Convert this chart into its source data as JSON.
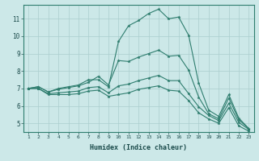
{
  "xlabel": "Humidex (Indice chaleur)",
  "background_color": "#cce8e8",
  "grid_color": "#aacece",
  "line_color": "#2e7d6e",
  "x_values": [
    1,
    2,
    3,
    4,
    5,
    6,
    7,
    8,
    9,
    10,
    11,
    12,
    13,
    14,
    15,
    16,
    17,
    18,
    19,
    20,
    21,
    22,
    23
  ],
  "series": [
    [
      7.0,
      7.1,
      6.8,
      7.0,
      7.1,
      7.2,
      7.5,
      7.5,
      7.1,
      9.7,
      10.6,
      10.9,
      11.3,
      11.55,
      11.0,
      11.1,
      10.05,
      7.3,
      5.75,
      5.4,
      6.65,
      5.3,
      4.7
    ],
    [
      7.0,
      7.1,
      6.8,
      6.95,
      7.05,
      7.15,
      7.35,
      7.7,
      7.2,
      8.6,
      8.55,
      8.8,
      9.0,
      9.2,
      8.85,
      8.9,
      8.05,
      6.5,
      5.55,
      5.25,
      6.45,
      5.2,
      4.7
    ],
    [
      7.0,
      7.0,
      6.7,
      6.75,
      6.8,
      6.85,
      7.05,
      7.1,
      6.75,
      7.15,
      7.25,
      7.45,
      7.6,
      7.75,
      7.45,
      7.45,
      6.7,
      5.95,
      5.45,
      5.15,
      6.15,
      5.05,
      4.65
    ],
    [
      7.0,
      7.0,
      6.65,
      6.65,
      6.65,
      6.7,
      6.85,
      6.9,
      6.55,
      6.65,
      6.75,
      6.95,
      7.05,
      7.15,
      6.9,
      6.85,
      6.3,
      5.6,
      5.25,
      5.0,
      5.9,
      4.85,
      4.55
    ]
  ],
  "ylim": [
    4.5,
    11.8
  ],
  "xlim": [
    0.5,
    23.5
  ],
  "yticks": [
    5,
    6,
    7,
    8,
    9,
    10,
    11
  ],
  "xticks": [
    1,
    2,
    3,
    4,
    5,
    6,
    7,
    8,
    9,
    10,
    11,
    12,
    13,
    14,
    15,
    16,
    17,
    18,
    19,
    20,
    21,
    22,
    23
  ]
}
